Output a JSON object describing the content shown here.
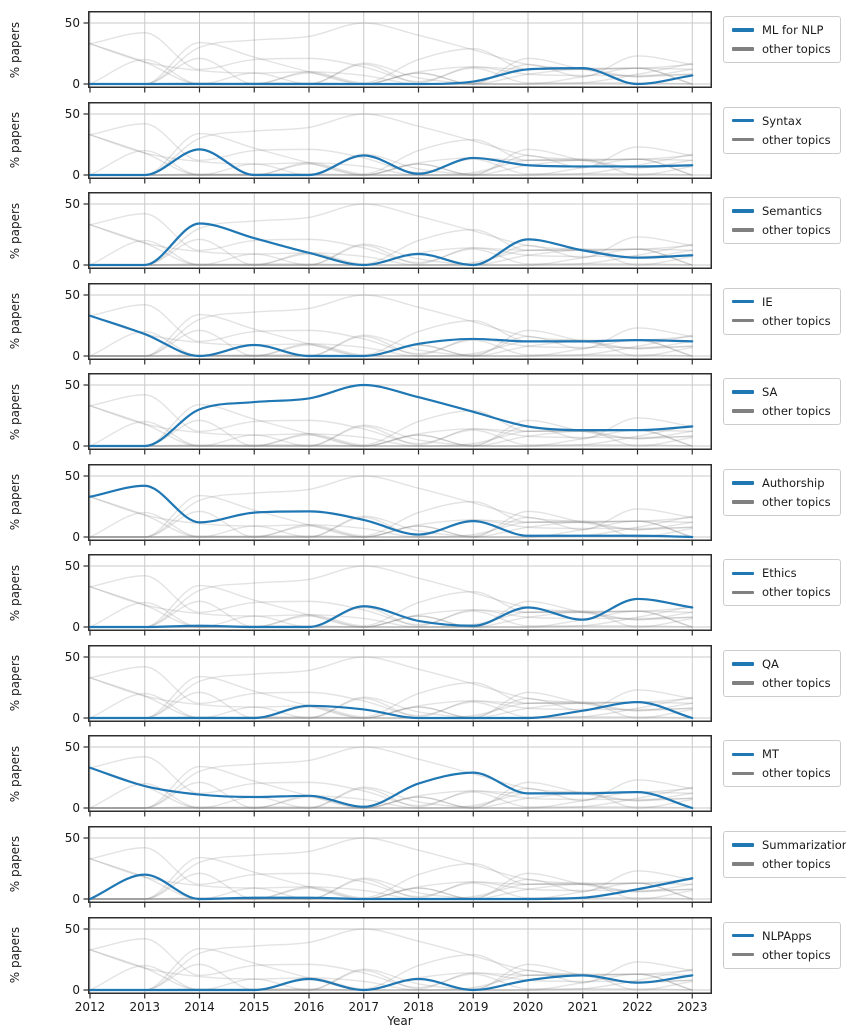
{
  "axes": {
    "ylabel": "% papers",
    "xlabel": "Year",
    "yticks": [
      "50",
      "0"
    ],
    "xticks": [
      "2012",
      "2013",
      "2014",
      "2015",
      "2016",
      "2017",
      "2018",
      "2019",
      "2020",
      "2021",
      "2022",
      "2023"
    ]
  },
  "legend": {
    "other_label": "other topics",
    "highlight_color": "#1f77b4",
    "other_color": "#808080"
  },
  "style_colors": {
    "grid": "#c9c9c9",
    "spine": "#2e2e2e",
    "highlight_line": "#1f77b4",
    "other_line": "#808080"
  },
  "chart_data": {
    "type": "line",
    "layout": "11 stacked small-multiple panels sharing the x axis; each panel highlights one topic in blue and overlays all other topics as faint gray lines; legend at right of each panel; vertical gridline per year, horizontal gridlines at 0 and 50",
    "title": "",
    "xlabel": "Year",
    "ylabel": "% papers",
    "x": [
      2012,
      2013,
      2014,
      2015,
      2016,
      2017,
      2018,
      2019,
      2020,
      2021,
      2022,
      2023
    ],
    "ylim": [
      0,
      52
    ],
    "yticks": [
      0,
      50
    ],
    "grid": true,
    "legend_position": "right",
    "other_topics_label": "other topics",
    "series": [
      {
        "name": "ML for NLP",
        "values": [
          0,
          0,
          0,
          0,
          0,
          0,
          0,
          2,
          12,
          13,
          0,
          7
        ]
      },
      {
        "name": "Syntax",
        "values": [
          0,
          0,
          21,
          0,
          0,
          16,
          1,
          14,
          8,
          7,
          7,
          8
        ]
      },
      {
        "name": "Semantics",
        "values": [
          0,
          0,
          34,
          22,
          10,
          0,
          9,
          0,
          21,
          12,
          6,
          8
        ]
      },
      {
        "name": "IE",
        "values": [
          33,
          18,
          0,
          9,
          0,
          0,
          10,
          14,
          12,
          12,
          13,
          12
        ]
      },
      {
        "name": "SA",
        "values": [
          0,
          0,
          30,
          36,
          39,
          50,
          40,
          28,
          16,
          13,
          13,
          16
        ]
      },
      {
        "name": "Authorship",
        "values": [
          33,
          42,
          12,
          20,
          21,
          14,
          2,
          13,
          1,
          1,
          1,
          0
        ]
      },
      {
        "name": "Ethics",
        "values": [
          0,
          0,
          1,
          0,
          0,
          17,
          5,
          1,
          16,
          6,
          23,
          16
        ]
      },
      {
        "name": "QA",
        "values": [
          0,
          0,
          0,
          0,
          10,
          7,
          0,
          0,
          0,
          6,
          13,
          0
        ]
      },
      {
        "name": "MT",
        "values": [
          33,
          18,
          11,
          9,
          10,
          1,
          20,
          29,
          12,
          12,
          13,
          0
        ]
      },
      {
        "name": "Summarization",
        "values": [
          0,
          20,
          0,
          1,
          1,
          0,
          0,
          0,
          0,
          1,
          8,
          17
        ]
      },
      {
        "name": "NLPApps",
        "values": [
          0,
          0,
          0,
          0,
          9,
          0,
          9,
          0,
          8,
          12,
          6,
          12
        ]
      }
    ]
  }
}
